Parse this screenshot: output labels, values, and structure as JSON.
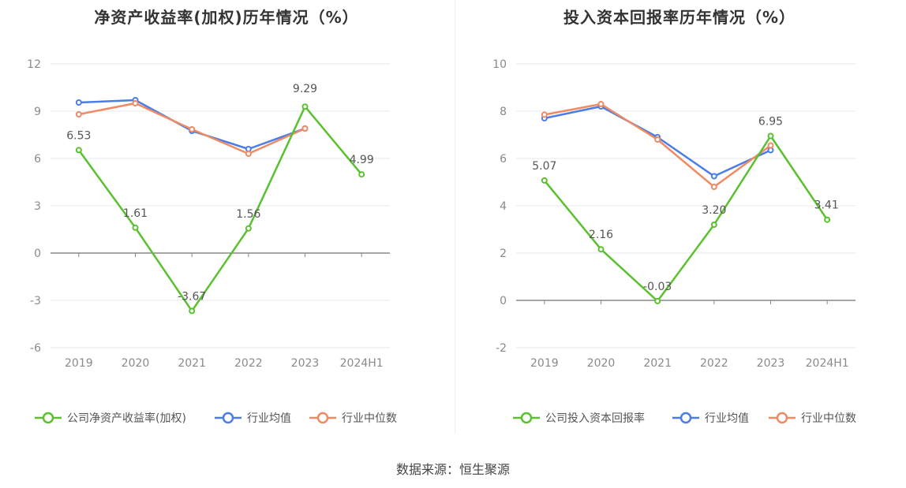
{
  "chart_data": [
    {
      "type": "line",
      "title": "净资产收益率(加权)历年情况（%）",
      "categories": [
        "2019",
        "2020",
        "2021",
        "2022",
        "2023",
        "2024H1"
      ],
      "yticks": [
        "12",
        "9",
        "6",
        "3",
        "0",
        "-3",
        "-6"
      ],
      "ylim": [
        -6,
        12
      ],
      "ytick_step": 3,
      "legend_position": "bottom",
      "grid": true,
      "series": [
        {
          "name": "公司净资产收益率(加权)",
          "color": "#5ac12e",
          "values": [
            6.53,
            1.61,
            -3.67,
            1.56,
            9.29,
            4.99
          ],
          "labels": [
            "6.53",
            "1.61",
            "-3.67",
            "1.56",
            "9.29",
            "4.99"
          ]
        },
        {
          "name": "行业均值",
          "color": "#4a7de8",
          "values": [
            9.55,
            9.7,
            7.75,
            6.6,
            7.9,
            null
          ]
        },
        {
          "name": "行业中位数",
          "color": "#f08a62",
          "values": [
            8.8,
            9.5,
            7.85,
            6.3,
            7.9,
            null
          ]
        }
      ]
    },
    {
      "type": "line",
      "title": "投入资本回报率历年情况（%）",
      "categories": [
        "2019",
        "2020",
        "2021",
        "2022",
        "2023",
        "2024H1"
      ],
      "yticks": [
        "10",
        "8",
        "6",
        "4",
        "2",
        "0",
        "-2"
      ],
      "ylim": [
        -2,
        10
      ],
      "ytick_step": 2,
      "legend_position": "bottom",
      "grid": true,
      "series": [
        {
          "name": "公司投入资本回报率",
          "color": "#5ac12e",
          "values": [
            5.07,
            2.16,
            -0.03,
            3.2,
            6.95,
            3.41
          ],
          "labels": [
            "5.07",
            "2.16",
            "-0.03",
            "3.20",
            "6.95",
            "3.41"
          ]
        },
        {
          "name": "行业均值",
          "color": "#4a7de8",
          "values": [
            7.7,
            8.2,
            6.9,
            5.25,
            6.35,
            null
          ]
        },
        {
          "name": "行业中位数",
          "color": "#f08a62",
          "values": [
            7.85,
            8.3,
            6.8,
            4.8,
            6.55,
            null
          ]
        }
      ]
    }
  ],
  "source": "数据来源：恒生聚源"
}
